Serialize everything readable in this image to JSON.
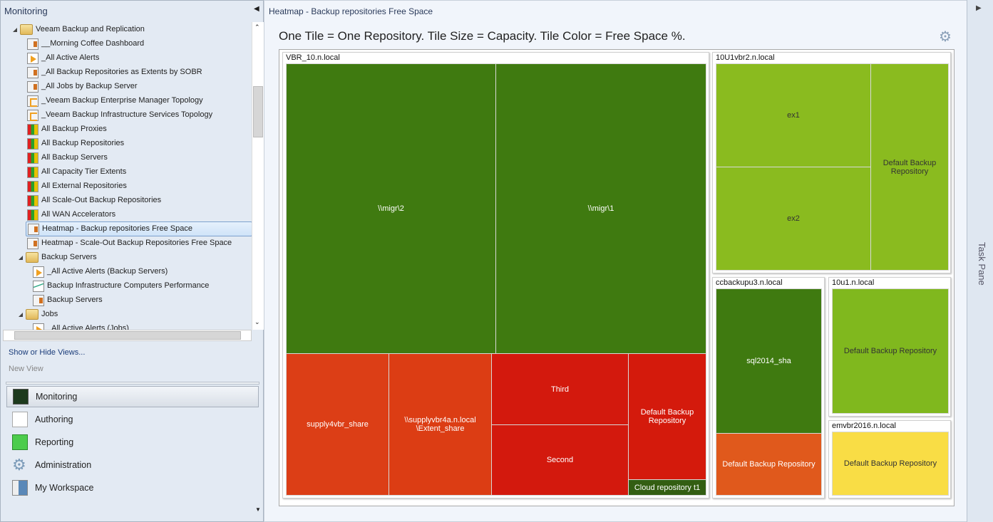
{
  "left": {
    "title": "Monitoring",
    "tree": [
      "Veeam Backup and Replication",
      "__Morning Coffee Dashboard",
      "_All Active Alerts",
      "_All Backup Repositories as Extents by SOBR",
      "_All Jobs by Backup Server",
      "_Veeam Backup Enterprise Manager Topology",
      "_Veeam Backup Infrastructure Services Topology",
      "All Backup Proxies",
      "All Backup Repositories",
      "All Backup Servers",
      "All Capacity Tier Extents",
      "All External Repositories",
      "All Scale-Out Backup Repositories",
      "All WAN Accelerators",
      "Heatmap - Backup repositories Free Space",
      "Heatmap - Scale-Out Backup Repositories Free Space",
      "Backup Servers",
      "_All Active Alerts (Backup Servers)",
      "Backup Infrastructure Computers Performance",
      "Backup Servers",
      "Jobs",
      "_All Active Alerts (Jobs)"
    ],
    "show_hide": "Show or Hide Views...",
    "new_view": "New View",
    "nav": [
      "Monitoring",
      "Authoring",
      "Reporting",
      "Administration",
      "My Workspace"
    ]
  },
  "main": {
    "header": "Heatmap - Backup repositories Free Space",
    "title": "One Tile = One Repository. Tile Size = Capacity. Tile Color = Free Space %."
  },
  "task_pane": "Task Pane",
  "colors": {
    "dark_green": "#3f7a10",
    "light_green": "#8abb1f",
    "green": "#80b81e",
    "orange_red": "#dc3e16",
    "red": "#d3190c",
    "orange": "#e0591c",
    "yellow": "#f9dd45"
  },
  "heatmap": {
    "groups": [
      "VBR_10.n.local",
      "10U1vbr2.n.local",
      "ccbackupu3.n.local",
      "10u1.n.local",
      "emvbr2016.n.local"
    ],
    "tiles": [
      "\\\\migr\\2",
      "\\\\migr\\1",
      "supply4vbr_share",
      "\\\\supplyvbr4a.n.local \\Extent_share",
      "Third",
      "Second",
      "Default Backup Repository",
      "Cloud repository t1",
      "ex1",
      "ex2",
      "Default Backup Repository",
      "sql2014_sha",
      "Default Backup Repository",
      "Default Backup Repository",
      "Default Backup Repository"
    ]
  }
}
